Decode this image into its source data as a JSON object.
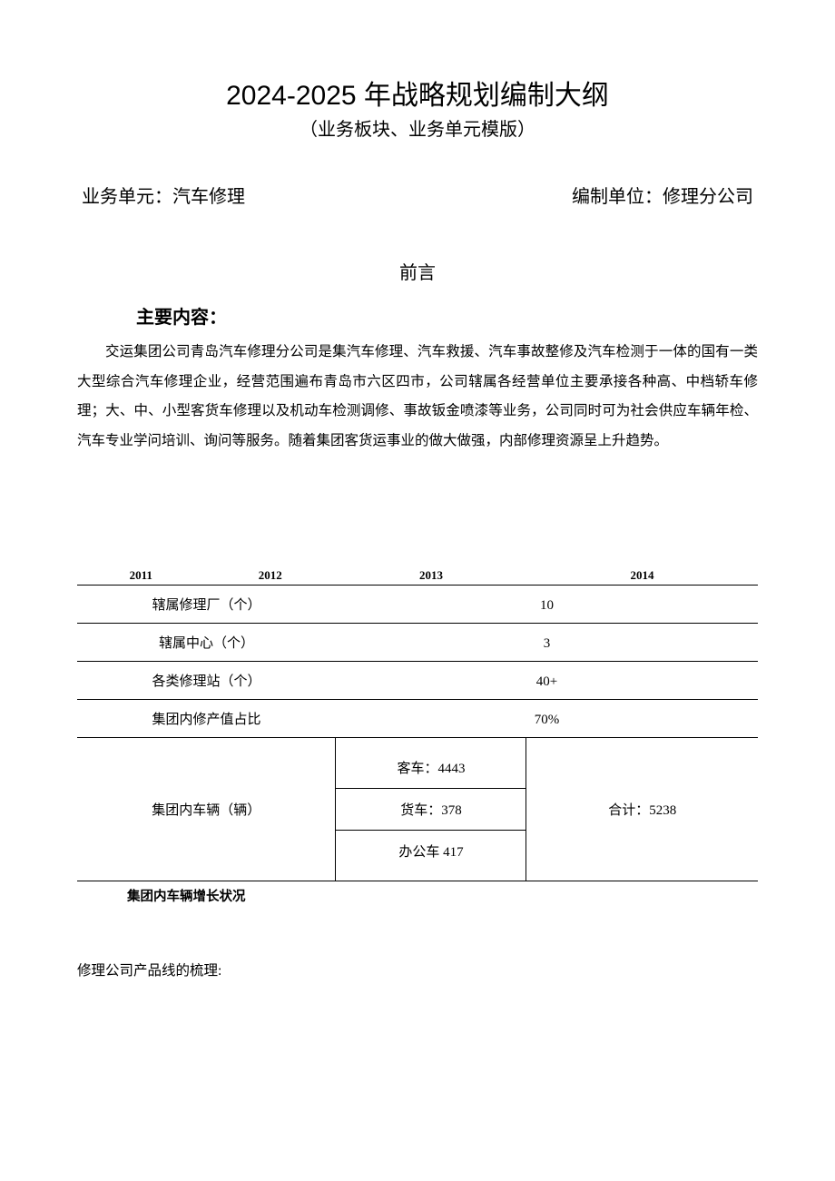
{
  "header": {
    "title_main": "2024-2025 年战略规划编制大纲",
    "title_sub": "（业务板块、业务单元模版）",
    "business_unit_label": "业务单元：汽车修理",
    "compiling_unit_label": "编制单位：修理分公司"
  },
  "preface": {
    "title": "前言",
    "section_title": "主要内容：",
    "body": "交运集团公司青岛汽车修理分公司是集汽车修理、汽车救援、汽车事故整修及汽车检测于一体的国有一类大型综合汽车修理企业，经营范围遍布青岛市六区四市，公司辖属各经营单位主要承接各种高、中档轿车修理；大、中、小型客货车修理以及机动车检测调修、事故钣金喷漆等业务，公司同时可为社会供应车辆年检、汽车专业学问培训、询问等服务。随着集团客货运事业的做大做强，内部修理资源呈上升趋势。"
  },
  "table": {
    "year_headers": [
      "2011",
      "2012",
      "2013",
      "2014"
    ],
    "rows": {
      "repair_factory": {
        "label": "辖属修理厂（个）",
        "value": "10"
      },
      "center": {
        "label": "辖属中心（个）",
        "value": "3"
      },
      "stations": {
        "label": "各类修理站（个）",
        "value": "40+"
      },
      "ratio": {
        "label": "集团内修产值占比",
        "value": "70%"
      },
      "vehicles": {
        "label": "集团内车辆（辆）",
        "bus": "客车：4443",
        "truck": "货车：378",
        "office": "办公车 417",
        "total": "合计：5238"
      }
    },
    "caption": "集团内车辆增长状况"
  },
  "footer": {
    "product_line": "修理公司产品线的梳理:"
  },
  "styles": {
    "background_color": "#ffffff",
    "text_color": "#000000",
    "border_color": "#000000",
    "title_fontsize": 30,
    "subtitle_fontsize": 20,
    "body_fontsize": 15.5,
    "table_header_fontsize": 13,
    "table_cell_fontsize": 15,
    "line_height": 2.1
  }
}
